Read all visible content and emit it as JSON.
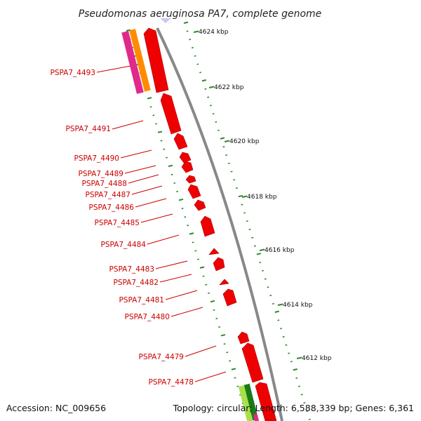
{
  "title": "Pseudomonas aeruginosa PA7, complete genome",
  "accession": "Accession: NC_009656",
  "summary": "Topology: circular; Length: 6,588,339 bp; Genes: 6,361",
  "colors": {
    "gene": "#ee0000",
    "gene_dark": "#990000",
    "backbone": "#888888",
    "tick": "#2a8a2a",
    "label": "#cc0000",
    "orange": "#ff8c00",
    "magenta": "#e0298a",
    "green_light": "#a8e04a",
    "green_dark": "#1a7a1a"
  },
  "gene_labels": [
    "PSPA7_4493",
    "PSPA7_4491",
    "PSPA7_4490",
    "PSPA7_4489",
    "PSPA7_4488",
    "PSPA7_4487",
    "PSPA7_4486",
    "PSPA7_4485",
    "PSPA7_4484",
    "PSPA7_4483",
    "PSPA7_4482",
    "PSPA7_4481",
    "PSPA7_4480",
    "PSPA7_4479",
    "PSPA7_4478"
  ],
  "scale_labels": [
    "4624 kbp",
    "4622 kbp",
    "4620 kbp",
    "4618 kbp",
    "4616 kbp",
    "4614 kbp",
    "4612 kbp"
  ]
}
